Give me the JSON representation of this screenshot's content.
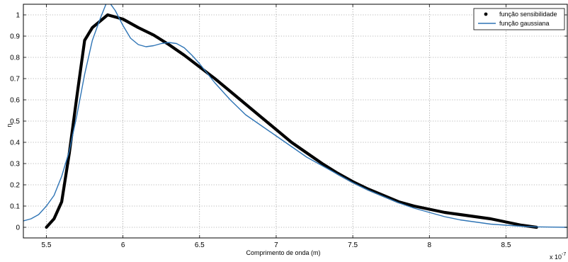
{
  "chart_data": {
    "type": "line",
    "xlabel": "Comprimento de onda (m)",
    "ylabel": "η",
    "x_scale_label": "x 10",
    "x_scale_exponent": "-7",
    "xlim": [
      5.35,
      8.9
    ],
    "ylim": [
      -0.05,
      1.05
    ],
    "x_ticks": [
      5.5,
      6,
      6.5,
      7,
      7.5,
      8,
      8.5
    ],
    "x_tick_labels": [
      "5.5",
      "6",
      "6.5",
      "7",
      "7.5",
      "8",
      "8.5"
    ],
    "y_ticks": [
      0,
      0.1,
      0.2,
      0.3,
      0.4,
      0.5,
      0.6,
      0.7,
      0.8,
      0.9,
      1
    ],
    "y_tick_labels": [
      "0",
      "0.1",
      "0.2",
      "0.3",
      "0.4",
      "0.5",
      "0.6",
      "0.7",
      "0.8",
      "0.9",
      "1"
    ],
    "grid": true,
    "legend_position": "top-right",
    "series": [
      {
        "name": "função sensibilidade",
        "color": "#000000",
        "x": [
          5.5,
          5.55,
          5.6,
          5.65,
          5.7,
          5.75,
          5.8,
          5.9,
          6.0,
          6.1,
          6.2,
          6.3,
          6.4,
          6.5,
          6.6,
          6.7,
          6.8,
          6.9,
          7.0,
          7.1,
          7.2,
          7.3,
          7.4,
          7.5,
          7.6,
          7.7,
          7.8,
          7.9,
          8.0,
          8.1,
          8.2,
          8.3,
          8.4,
          8.5,
          8.6,
          8.7
        ],
        "y": [
          0.0,
          0.04,
          0.12,
          0.35,
          0.62,
          0.88,
          0.94,
          1.0,
          0.98,
          0.94,
          0.905,
          0.86,
          0.81,
          0.755,
          0.7,
          0.64,
          0.58,
          0.52,
          0.46,
          0.4,
          0.35,
          0.3,
          0.255,
          0.215,
          0.18,
          0.15,
          0.12,
          0.1,
          0.085,
          0.07,
          0.06,
          0.05,
          0.04,
          0.025,
          0.01,
          0.0
        ]
      },
      {
        "name": "função gaussiana",
        "color": "#2e74b5",
        "x": [
          5.35,
          5.4,
          5.45,
          5.5,
          5.55,
          5.6,
          5.65,
          5.7,
          5.75,
          5.8,
          5.85,
          5.9,
          5.95,
          6.0,
          6.05,
          6.1,
          6.15,
          6.2,
          6.25,
          6.3,
          6.35,
          6.4,
          6.45,
          6.5,
          6.6,
          6.7,
          6.8,
          6.9,
          7.0,
          7.1,
          7.2,
          7.3,
          7.4,
          7.5,
          7.6,
          7.7,
          7.8,
          7.9,
          8.0,
          8.1,
          8.2,
          8.3,
          8.4,
          8.5,
          8.6,
          8.7,
          8.8,
          8.9
        ],
        "y": [
          0.03,
          0.04,
          0.06,
          0.1,
          0.15,
          0.24,
          0.36,
          0.53,
          0.72,
          0.88,
          0.98,
          1.07,
          1.02,
          0.95,
          0.89,
          0.86,
          0.85,
          0.855,
          0.865,
          0.87,
          0.865,
          0.845,
          0.81,
          0.77,
          0.68,
          0.6,
          0.53,
          0.48,
          0.43,
          0.38,
          0.33,
          0.29,
          0.25,
          0.21,
          0.175,
          0.145,
          0.115,
          0.09,
          0.07,
          0.05,
          0.035,
          0.025,
          0.015,
          0.01,
          0.005,
          0.002,
          0.001,
          0.0
        ]
      }
    ]
  }
}
